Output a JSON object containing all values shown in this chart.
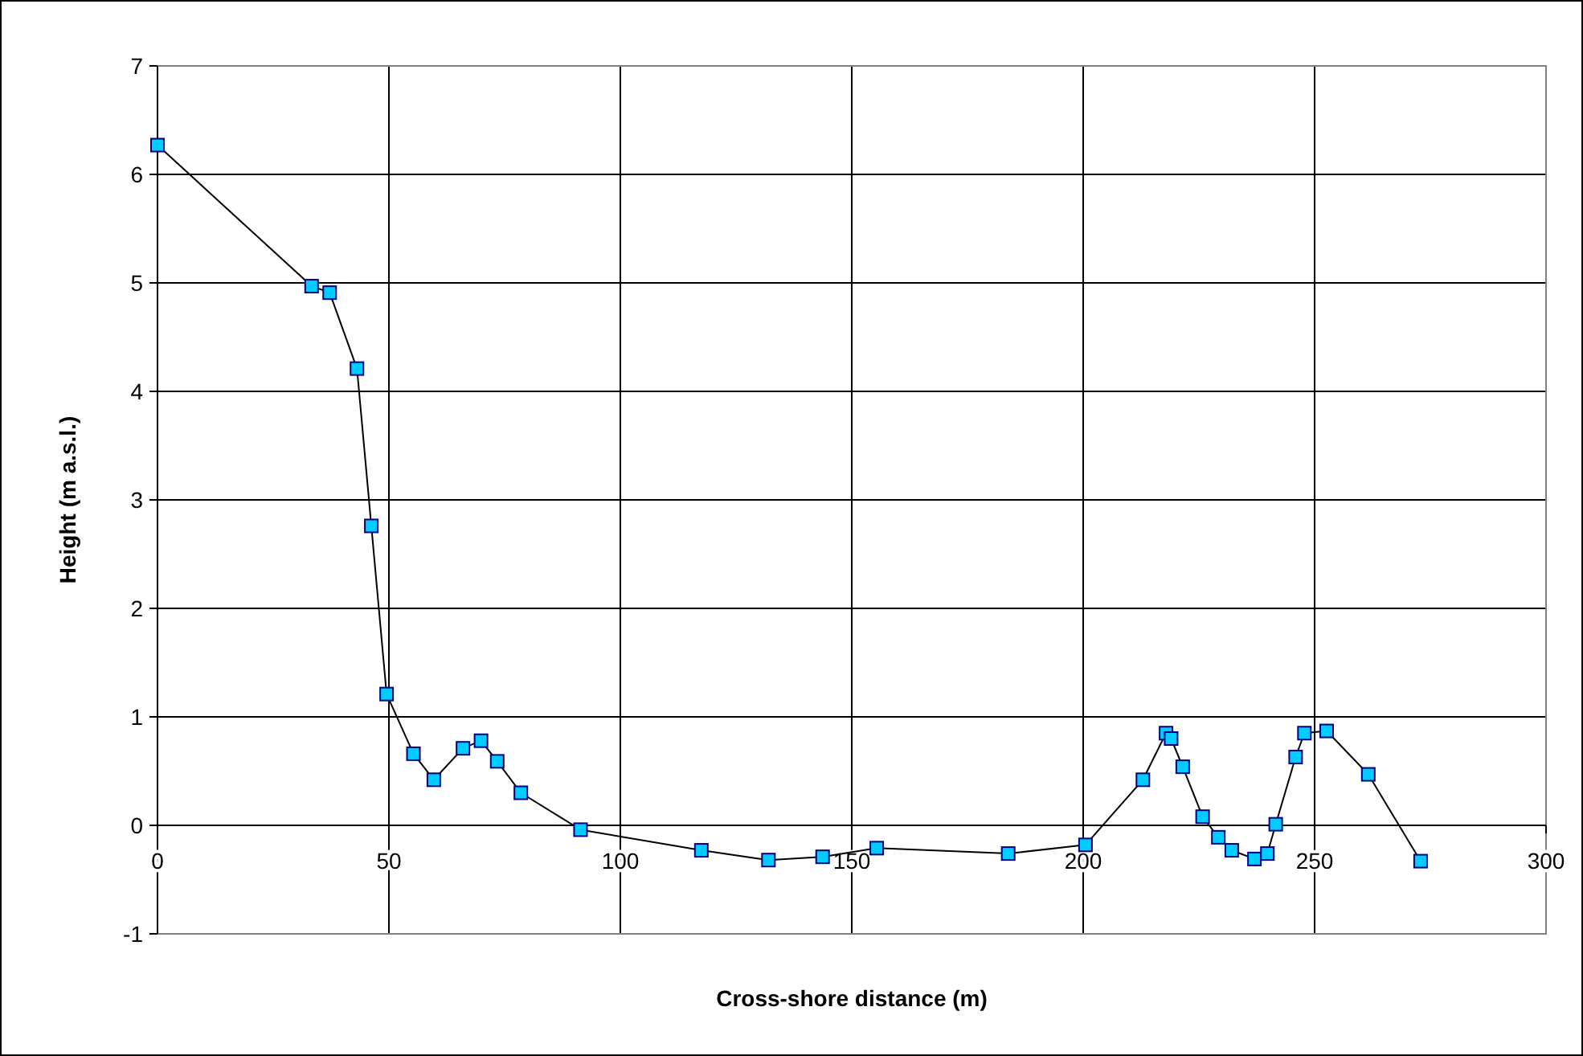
{
  "chart_data": {
    "type": "line",
    "xlabel": "Cross-shore distance (m)",
    "ylabel": "Height (m a.s.l.)",
    "x": [
      0,
      33.3,
      37.2,
      43.1,
      46.2,
      49.5,
      55.3,
      59.7,
      66,
      69.9,
      73.4,
      78.5,
      91.4,
      117.5,
      132,
      143.7,
      155.4,
      183.8,
      200.5,
      212.9,
      217.9,
      219,
      221.5,
      225.8,
      229.2,
      232.1,
      237,
      239.8,
      241.6,
      245.9,
      247.8,
      252.6,
      261.6,
      272.9
    ],
    "series": [
      {
        "color": "#000000",
        "values": [
          6.27,
          4.97,
          4.91,
          4.21,
          2.76,
          1.21,
          0.66,
          0.42,
          0.71,
          0.78,
          0.59,
          0.3,
          -0.04,
          -0.23,
          -0.32,
          -0.29,
          -0.21,
          -0.26,
          -0.18,
          0.42,
          0.85,
          0.8,
          0.54,
          0.08,
          -0.11,
          -0.23,
          -0.31,
          -0.26,
          0.01,
          0.63,
          0.85,
          0.87,
          0.47,
          -0.33
        ]
      }
    ],
    "xlim": [
      0,
      300
    ],
    "xticks": [
      0,
      50,
      100,
      150,
      200,
      250,
      300
    ],
    "ylim": [
      -1,
      7
    ],
    "yticks": [
      -1,
      0,
      1,
      2,
      3,
      4,
      5,
      6,
      7
    ],
    "grid": true,
    "marker": "square",
    "line_style": "solid"
  }
}
